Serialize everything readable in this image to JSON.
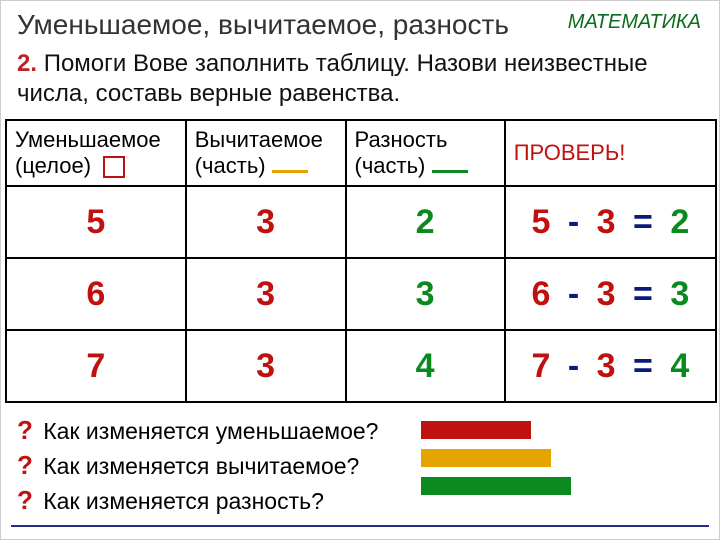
{
  "title": "Уменьшаемое, вычитаемое, разность",
  "subject": "МАТЕМАТИКА",
  "task_num": "2.",
  "task_text": "Помоги Вове заполнить таблицу. Назови неизвестные числа, составь верные равенства.",
  "headers": {
    "c1a": "Уменьшаемое",
    "c1b": "(целое)",
    "c2a": "Вычитаемое",
    "c2b": "(часть)",
    "c3a": "Разность",
    "c3b": "(часть)",
    "c4": "ПРОВЕРЬ!"
  },
  "rows": [
    {
      "a": "5",
      "b": "3",
      "c": "2",
      "eq": {
        "x": "5",
        "op": "-",
        "y": "3",
        "eq": "=",
        "z": "2"
      }
    },
    {
      "a": "6",
      "b": "3",
      "c": "3",
      "eq": {
        "x": "6",
        "op": "-",
        "y": "3",
        "eq": "=",
        "z": "3"
      }
    },
    {
      "a": "7",
      "b": "3",
      "c": "4",
      "eq": {
        "x": "7",
        "op": "-",
        "y": "3",
        "eq": "=",
        "z": "4"
      }
    }
  ],
  "questions": {
    "q1": "Как изменяется уменьшаемое?",
    "q2": "Как изменяется вычитаемое?",
    "q3": "Как изменяется разность?"
  },
  "colors": {
    "red": "#c01010",
    "yellow": "#e5a400",
    "green": "#0a8a1e",
    "blue": "#1a2fd0"
  }
}
